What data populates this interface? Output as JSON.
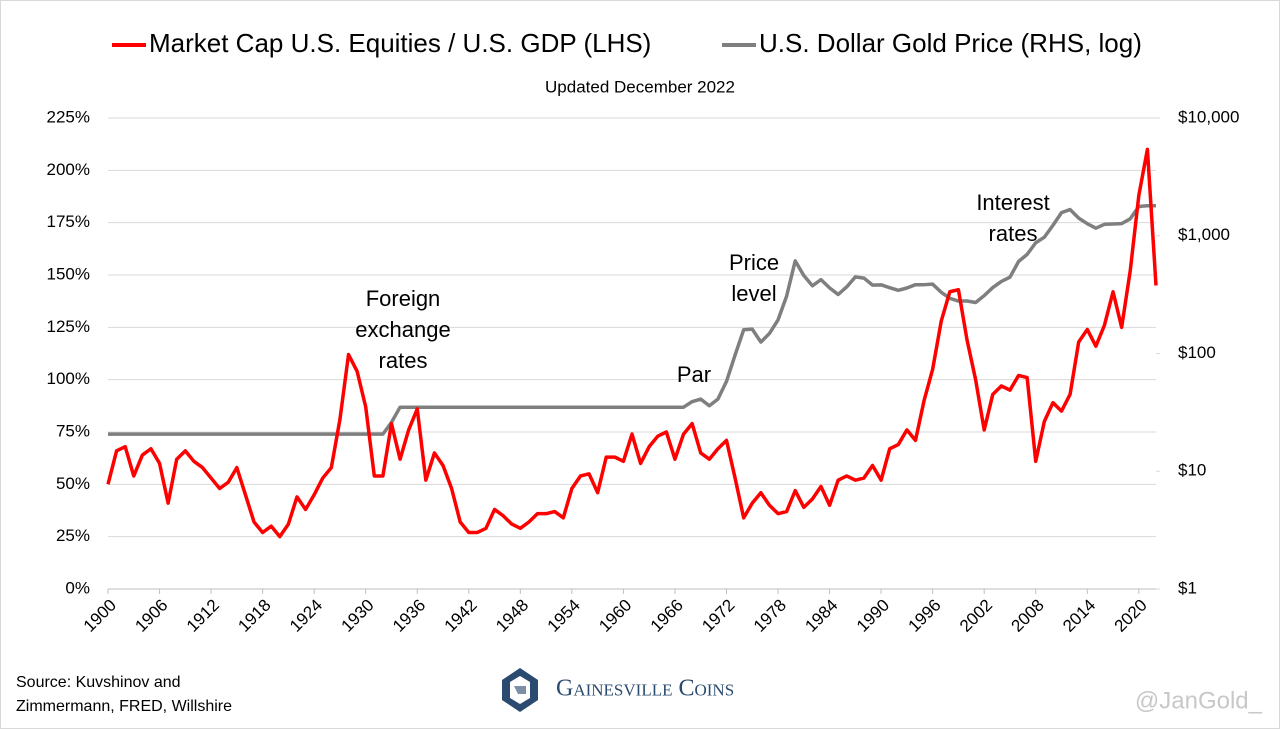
{
  "chart_data": {
    "type": "line",
    "subtitle": "Updated December 2022",
    "x": [
      1900,
      1901,
      1902,
      1903,
      1904,
      1905,
      1906,
      1907,
      1908,
      1909,
      1910,
      1911,
      1912,
      1913,
      1914,
      1915,
      1916,
      1917,
      1918,
      1919,
      1920,
      1921,
      1922,
      1923,
      1924,
      1925,
      1926,
      1927,
      1928,
      1929,
      1930,
      1931,
      1932,
      1933,
      1934,
      1935,
      1936,
      1937,
      1938,
      1939,
      1940,
      1941,
      1942,
      1943,
      1944,
      1945,
      1946,
      1947,
      1948,
      1949,
      1950,
      1951,
      1952,
      1953,
      1954,
      1955,
      1956,
      1957,
      1958,
      1959,
      1960,
      1961,
      1962,
      1963,
      1964,
      1965,
      1966,
      1967,
      1968,
      1969,
      1970,
      1971,
      1972,
      1973,
      1974,
      1975,
      1976,
      1977,
      1978,
      1979,
      1980,
      1981,
      1982,
      1983,
      1984,
      1985,
      1986,
      1987,
      1988,
      1989,
      1990,
      1991,
      1992,
      1993,
      1994,
      1995,
      1996,
      1997,
      1998,
      1999,
      2000,
      2001,
      2002,
      2003,
      2004,
      2005,
      2006,
      2007,
      2008,
      2009,
      2010,
      2011,
      2012,
      2013,
      2014,
      2015,
      2016,
      2017,
      2018,
      2019,
      2020,
      2021,
      2022
    ],
    "series": [
      {
        "name": "Market Cap U.S. Equities / U.S. GDP (LHS)",
        "color": "#ff0000",
        "axis": "y",
        "values": [
          50,
          66,
          68,
          54,
          64,
          67,
          60,
          41,
          62,
          66,
          61,
          58,
          53,
          48,
          51,
          58,
          45,
          32,
          27,
          30,
          25,
          31,
          44,
          38,
          45,
          53,
          58,
          81,
          112,
          104,
          87,
          54,
          54,
          79,
          62,
          76,
          86,
          52,
          65,
          59,
          48,
          32,
          27,
          27,
          29,
          38,
          35,
          31,
          29,
          32,
          36,
          36,
          37,
          34,
          48,
          54,
          55,
          46,
          63,
          63,
          61,
          74,
          60,
          68,
          73,
          75,
          62,
          74,
          79,
          65,
          62,
          67,
          71,
          53,
          34,
          41,
          46,
          40,
          36,
          37,
          47,
          39,
          43,
          49,
          40,
          52,
          54,
          52,
          53,
          59,
          52,
          67,
          69,
          76,
          71,
          90,
          105,
          128,
          142,
          143,
          119,
          100,
          76,
          93,
          97,
          95,
          102,
          101,
          61,
          80,
          89,
          85,
          93,
          118,
          124,
          116,
          126,
          142,
          125,
          152,
          188,
          210,
          145
        ]
      },
      {
        "name": "U.S. Dollar Gold Price (RHS, log)",
        "color": "#7f7f7f",
        "axis": "y2",
        "values": [
          20.67,
          20.67,
          20.67,
          20.67,
          20.67,
          20.67,
          20.67,
          20.67,
          20.67,
          20.67,
          20.67,
          20.67,
          20.67,
          20.67,
          20.67,
          20.67,
          20.67,
          20.67,
          20.67,
          20.67,
          20.67,
          20.67,
          20.67,
          20.67,
          20.67,
          20.67,
          20.67,
          20.67,
          20.67,
          20.67,
          20.67,
          20.67,
          20.67,
          26,
          35,
          35,
          35,
          35,
          35,
          35,
          35,
          35,
          35,
          35,
          35,
          35,
          35,
          35,
          35,
          35,
          35,
          35,
          35,
          35,
          35,
          35,
          35,
          35,
          35,
          35,
          35,
          35,
          35,
          35,
          35,
          35,
          35,
          35,
          39,
          41,
          36,
          41,
          58,
          97,
          159,
          161,
          125,
          148,
          193,
          307,
          612,
          460,
          376,
          424,
          361,
          317,
          368,
          447,
          437,
          381,
          383,
          362,
          344,
          360,
          384,
          384,
          388,
          331,
          294,
          279,
          279,
          271,
          310,
          363,
          409,
          445,
          604,
          695,
          872,
          972,
          1225,
          1572,
          1669,
          1411,
          1266,
          1160,
          1251,
          1257,
          1268,
          1393,
          1770,
          1799,
          1800
        ]
      }
    ],
    "xlim": [
      1900,
      2022
    ],
    "xticks": [
      1900,
      1906,
      1912,
      1918,
      1924,
      1930,
      1936,
      1942,
      1948,
      1954,
      1960,
      1966,
      1972,
      1978,
      1984,
      1990,
      1996,
      2002,
      2008,
      2014,
      2020
    ],
    "ylim": [
      0,
      225
    ],
    "yticks": [
      {
        "value": 0,
        "label": "0%"
      },
      {
        "value": 25,
        "label": "25%"
      },
      {
        "value": 50,
        "label": "50%"
      },
      {
        "value": 75,
        "label": "75%"
      },
      {
        "value": 100,
        "label": "100%"
      },
      {
        "value": 125,
        "label": "125%"
      },
      {
        "value": 150,
        "label": "150%"
      },
      {
        "value": 175,
        "label": "175%"
      },
      {
        "value": 200,
        "label": "200%"
      },
      {
        "value": 225,
        "label": "225%"
      }
    ],
    "y2lim": [
      1,
      10000
    ],
    "y2log": true,
    "y2ticks": [
      {
        "value": 1,
        "label": "$1"
      },
      {
        "value": 10,
        "label": "$10"
      },
      {
        "value": 100,
        "label": "$100"
      },
      {
        "value": 1000,
        "label": "$1,000"
      },
      {
        "value": 10000,
        "label": "$10,000"
      }
    ],
    "grid": true,
    "legend": "top",
    "annotations": [
      [
        "Foreign",
        "exchange",
        "rates"
      ],
      [
        "Par"
      ],
      [
        "Price",
        "level"
      ],
      [
        "Interest",
        "rates"
      ]
    ],
    "source": [
      "Source: Kuvshinov and",
      "Zimmermann, FRED, Willshire"
    ],
    "logo": "Gainesville Coins",
    "watermark": "@JanGold_"
  }
}
